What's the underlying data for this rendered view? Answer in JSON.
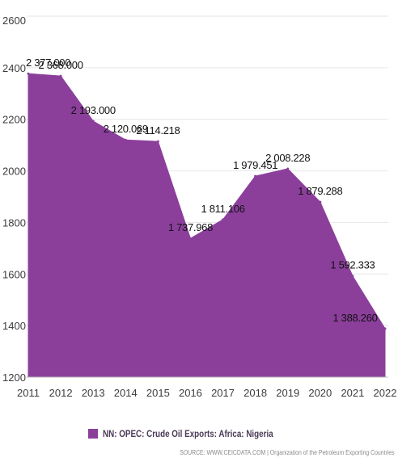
{
  "chart_data": {
    "type": "area",
    "x": [
      "2011",
      "2012",
      "2013",
      "2014",
      "2015",
      "2016",
      "2017",
      "2018",
      "2019",
      "2020",
      "2021",
      "2022"
    ],
    "series": [
      {
        "name": "NN: OPEC: Crude Oil Exports: Africa: Nigeria",
        "values": [
          2377.0,
          2368.0,
          2193.0,
          2120.069,
          2114.218,
          1737.968,
          1811.106,
          1979.451,
          2008.228,
          1879.288,
          1592.333,
          1388.26
        ],
        "labels": [
          "2 377.000",
          "2 368.000",
          "2 193.000",
          "2 120.069",
          "2 114.218",
          "1 737.968",
          "1 811.106",
          "1 979.451",
          "2 008.228",
          "1 879.288",
          "1 592.333",
          "1 388.260"
        ]
      }
    ],
    "yticks": [
      "1200",
      "1400",
      "1600",
      "1800",
      "2000",
      "2200",
      "2400",
      "2600"
    ],
    "ylim": [
      1200,
      2600
    ],
    "title": "",
    "xlabel": "",
    "ylabel": "",
    "grid": "y-axis",
    "legend_position": "bottom",
    "fill_color": "#8b3f9b"
  },
  "legend": {
    "label": "NN: OPEC: Crude Oil Exports: Africa: Nigeria"
  },
  "source": "SOURCE: WWW.CEICDATA.COM | Organization of the Petroleum Exporting Countries"
}
